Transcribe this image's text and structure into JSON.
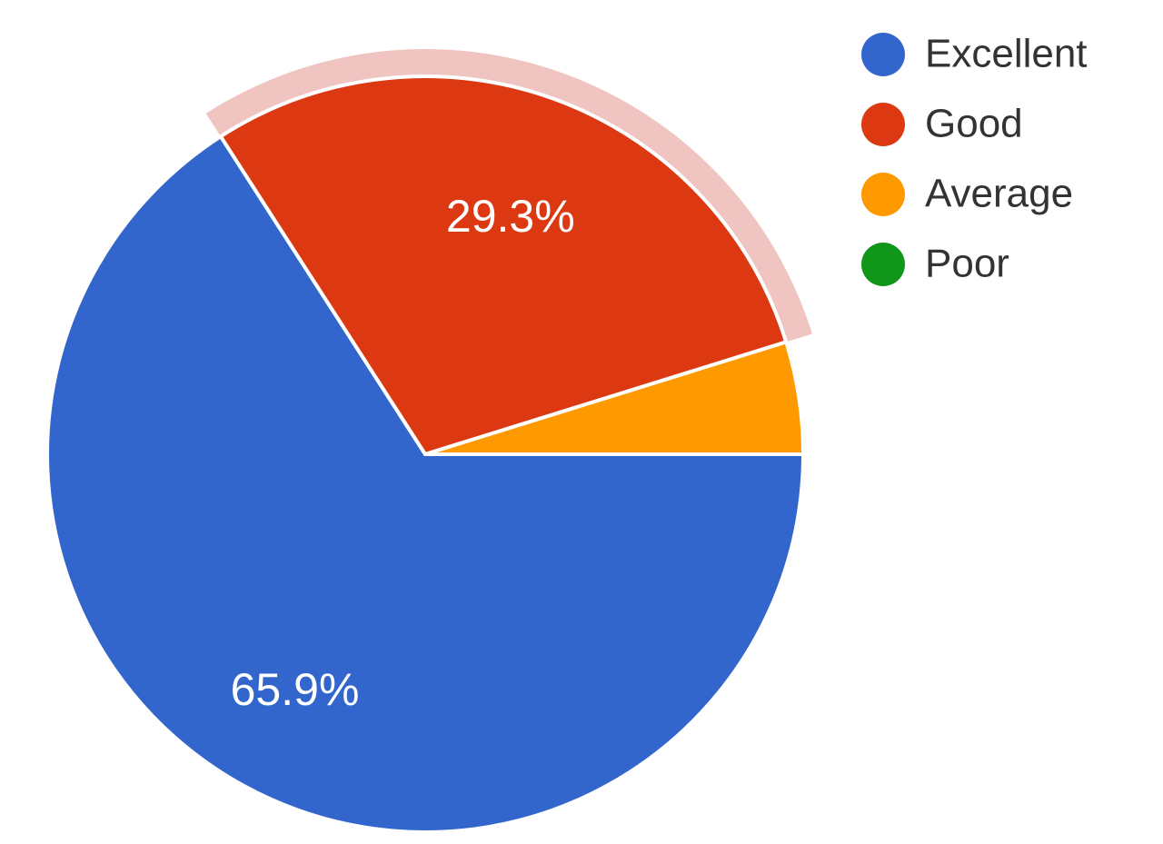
{
  "chart_data": {
    "type": "pie",
    "title": "",
    "legend_position": "top-right",
    "slices": [
      {
        "label": "Excellent",
        "value": 65.9,
        "color": "#3366cc",
        "data_label": "65.9%"
      },
      {
        "label": "Good",
        "value": 29.3,
        "color": "#dc3912",
        "data_label": "29.3%",
        "highlighted": true,
        "highlight_color": "#f0c4c0"
      },
      {
        "label": "Average",
        "value": 4.8,
        "color": "#ff9900",
        "data_label": ""
      },
      {
        "label": "Poor",
        "value": 0,
        "color": "#109618",
        "data_label": ""
      }
    ]
  }
}
